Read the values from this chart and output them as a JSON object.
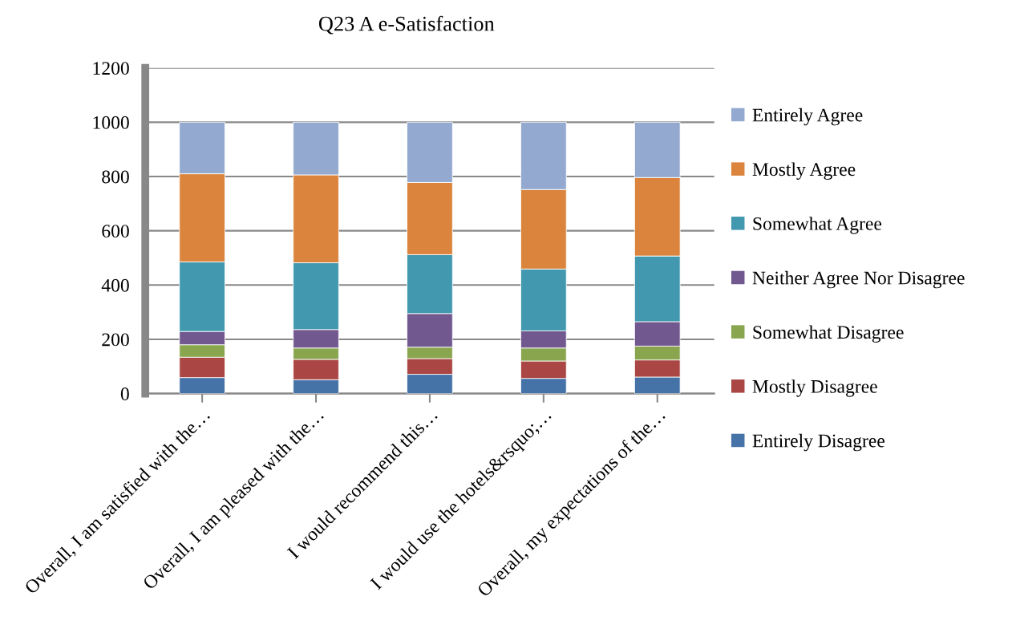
{
  "chart_data": {
    "type": "bar",
    "stacked": true,
    "title": "Q23 A e-Satisfaction",
    "categories": [
      "Overall, I am satisfied with the…",
      "Overall, I am pleased with the…",
      "I would recommend this…",
      "I would use the hotels&rsquo;…",
      "Overall, my expectations of the…"
    ],
    "series": [
      {
        "name": "Entirely Disagree",
        "color": "#4572a7",
        "values": [
          59,
          51,
          71,
          56,
          61
        ]
      },
      {
        "name": "Mostly Disagree",
        "color": "#aa4643",
        "values": [
          75,
          75,
          58,
          64,
          63
        ]
      },
      {
        "name": "Somewhat Disagree",
        "color": "#89a54e",
        "values": [
          46,
          42,
          42,
          48,
          51
        ]
      },
      {
        "name": "Neither Agree Nor Disagree",
        "color": "#71588f",
        "values": [
          49,
          68,
          124,
          63,
          90
        ]
      },
      {
        "name": "Somewhat Agree",
        "color": "#4198af",
        "values": [
          256,
          246,
          217,
          228,
          242
        ]
      },
      {
        "name": "Mostly Agree",
        "color": "#db843d",
        "values": [
          325,
          324,
          266,
          293,
          289
        ]
      },
      {
        "name": "Entirely Agree",
        "color": "#93a9cf",
        "values": [
          190,
          194,
          222,
          248,
          204
        ]
      }
    ],
    "ylim": [
      0,
      1200
    ],
    "yticks": [
      0,
      200,
      400,
      600,
      800,
      1000,
      1200
    ],
    "grid": "y",
    "legend": "right"
  }
}
